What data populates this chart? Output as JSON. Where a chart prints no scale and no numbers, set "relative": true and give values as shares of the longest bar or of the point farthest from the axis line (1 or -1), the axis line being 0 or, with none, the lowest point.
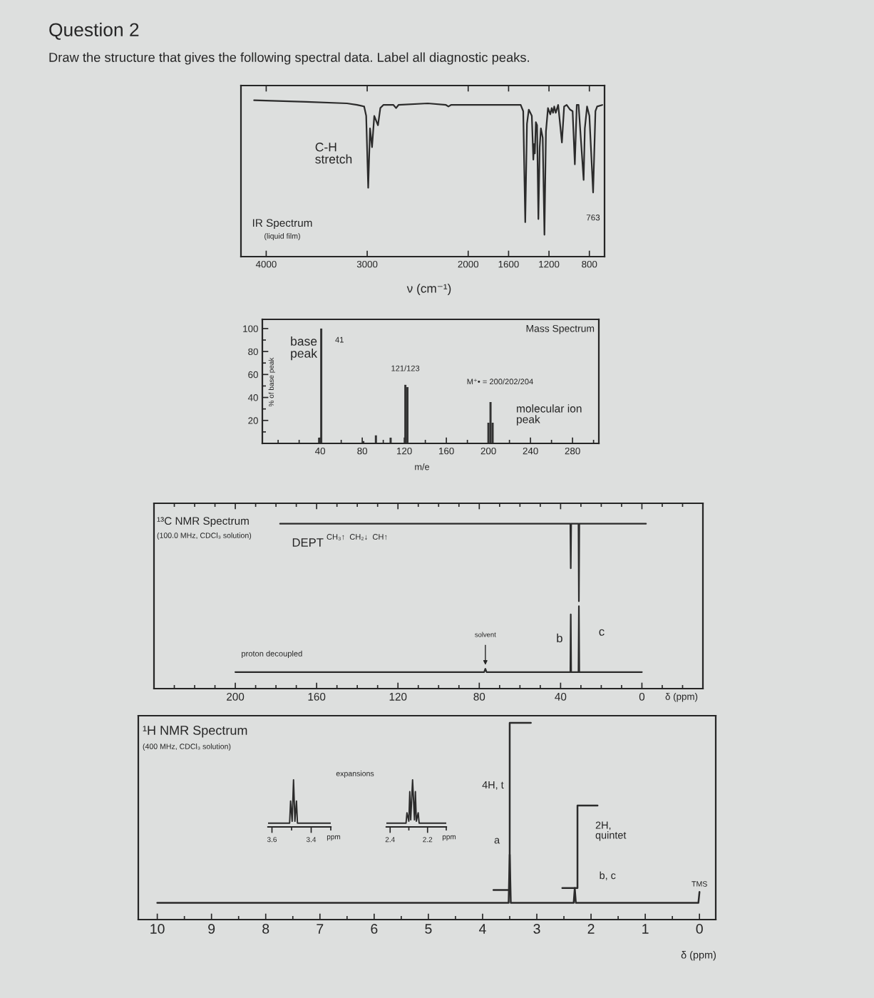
{
  "chart_data": [
    {
      "type": "other",
      "title": "Question 2",
      "subtitle": "Draw the structure that gives the following spectral data. Label all diagnostic peaks."
    },
    {
      "type": "line",
      "title": "IR Spectrum",
      "subtitle": "(liquid film)",
      "xlabel": "ν (cm⁻¹)",
      "relative": true,
      "xlim": [
        4250,
        650
      ],
      "xticks": [
        4000,
        3000,
        2000,
        1600,
        1200,
        800
      ],
      "series": [
        {
          "color": "#2b2b2b",
          "x": [
            4120,
            3600,
            3200,
            3100,
            3030,
            3010,
            2990,
            2972,
            2952,
            2930,
            2893,
            2870,
            2840,
            2740,
            2714,
            2690,
            2400,
            2220,
            2196,
            2170,
            1800,
            1480,
            1455,
            1435,
            1418,
            1400,
            1370,
            1355,
            1348,
            1340,
            1330,
            1318,
            1305,
            1292,
            1280,
            1262,
            1245,
            1230,
            1210,
            1187,
            1173,
            1160,
            1148,
            1133,
            1109,
            1072,
            1050,
            1025,
            991,
            966,
            944,
            925,
            907,
            857,
            845,
            823,
            800,
            763,
            740,
            723,
            672
          ],
          "values": [
            1.0,
            0.99,
            0.98,
            0.97,
            0.96,
            0.9,
            0.44,
            0.82,
            0.7,
            0.9,
            0.84,
            0.95,
            0.97,
            0.97,
            0.95,
            0.97,
            0.98,
            0.97,
            0.96,
            0.97,
            0.97,
            0.97,
            0.93,
            0.22,
            0.85,
            0.94,
            0.9,
            0.62,
            0.72,
            0.66,
            0.86,
            0.84,
            0.24,
            0.7,
            0.82,
            0.76,
            0.14,
            0.8,
            0.95,
            0.91,
            0.95,
            0.92,
            0.96,
            0.92,
            0.97,
            0.73,
            0.96,
            0.97,
            0.94,
            0.93,
            0.59,
            0.97,
            0.97,
            0.49,
            0.82,
            0.96,
            0.9,
            0.41,
            0.93,
            0.96,
            0.97
          ]
        }
      ],
      "annotations": [
        {
          "text": "C-H\nstretch",
          "x": 2990,
          "y": 0.44
        },
        {
          "text": "763",
          "x": 763,
          "y": 0.41
        }
      ]
    },
    {
      "type": "bar",
      "title": "Mass Spectrum",
      "xlabel": "m/e",
      "ylabel": "% of base peak",
      "x": [
        39,
        41,
        81,
        93,
        107,
        121,
        123,
        200,
        202,
        204
      ],
      "values": [
        5,
        100,
        2,
        7,
        5,
        51,
        49,
        18,
        36,
        18
      ],
      "color": "#333333",
      "xlim": [
        -15,
        305
      ],
      "xticks": [
        {
          "value": 0,
          "label": null
        },
        {
          "value": 20,
          "label": null
        },
        40,
        {
          "value": 60,
          "label": null
        },
        80,
        {
          "value": 100,
          "label": null
        },
        120,
        {
          "value": 140,
          "label": null
        },
        160,
        {
          "value": 180,
          "label": null
        },
        200,
        {
          "value": 220,
          "label": null
        },
        240,
        {
          "value": 260,
          "label": null
        },
        280,
        {
          "value": 300,
          "label": null
        }
      ],
      "ylim": [
        0,
        108
      ],
      "yticks": [
        {
          "value": 10,
          "label": null
        },
        20,
        {
          "value": 30,
          "label": null
        },
        40,
        {
          "value": 50,
          "label": null
        },
        60,
        {
          "value": 70,
          "label": null
        },
        80,
        {
          "value": 90,
          "label": null
        },
        100
      ],
      "annotations": [
        {
          "text": "base\npeak",
          "x": 41,
          "y": 100
        },
        {
          "text": "41",
          "x": 41,
          "y": 100
        },
        {
          "text": "121/123",
          "x": 121,
          "y": 51
        },
        {
          "text": "M⁺• = 200/202/204",
          "x": 202,
          "y": 36
        },
        "molecular ion\npeak"
      ]
    },
    {
      "type": "line",
      "title": "¹³C NMR Spectrum",
      "subtitle": "(100.0 MHz, CDCl₃ solution)",
      "xlabel": "δ (ppm)",
      "relative": true,
      "xlim": [
        240,
        -30
      ],
      "xticks": [
        {
          "value": 230,
          "label": null
        },
        {
          "value": 220,
          "label": null
        },
        {
          "value": 210,
          "label": null
        },
        200,
        {
          "value": 190,
          "label": null
        },
        {
          "value": 180,
          "label": null
        },
        {
          "value": 170,
          "label": null
        },
        160,
        {
          "value": 150,
          "label": null
        },
        {
          "value": 140,
          "label": null
        },
        {
          "value": 130,
          "label": null
        },
        120,
        {
          "value": 110,
          "label": null
        },
        {
          "value": 100,
          "label": null
        },
        {
          "value": 90,
          "label": null
        },
        80,
        {
          "value": 70,
          "label": null
        },
        {
          "value": 60,
          "label": null
        },
        {
          "value": 50,
          "label": null
        },
        40,
        {
          "value": 30,
          "label": null
        },
        {
          "value": 20,
          "label": null
        },
        {
          "value": 10,
          "label": null
        },
        0,
        {
          "value": -10,
          "label": null
        },
        {
          "value": -20,
          "label": null
        }
      ],
      "series": [
        {
          "name": "DEPT",
          "color": "#2b2b2b",
          "x": [
            178,
            35.2,
            35,
            34.8,
            31.2,
            31,
            30.8,
            -2
          ],
          "values": [
            1,
            1,
            0.73,
            1,
            1,
            0.53,
            1,
            1
          ]
        },
        {
          "name": "proton decoupled",
          "color": "#2b2b2b",
          "x": [
            200,
            77.6,
            77,
            76.4,
            35.2,
            35,
            34.8,
            31.2,
            31,
            30.8,
            0
          ],
          "values": [
            0.1,
            0.1,
            0.12,
            0.1,
            0.1,
            0.45,
            0.1,
            0.1,
            0.5,
            0.1,
            0.1
          ]
        }
      ],
      "annotations": [
        "CH₃↑  CH₂↓  CH↑",
        {
          "text": "solvent",
          "x": 77,
          "y": 0.12
        },
        {
          "text": "b",
          "x": 35,
          "y": 0.3
        },
        {
          "text": "c",
          "x": 31,
          "y": 0.34
        }
      ]
    },
    {
      "type": "line",
      "title": "¹H NMR Spectrum",
      "subtitle": "(400 MHz, CDCl₃ solution)",
      "xlabel": "δ (ppm)",
      "relative": true,
      "xlim": [
        10.35,
        -0.3
      ],
      "xticks": [
        10,
        {
          "value": 9.5,
          "label": null
        },
        9,
        {
          "value": 8.5,
          "label": null
        },
        8,
        {
          "value": 7.5,
          "label": null
        },
        7,
        {
          "value": 6.5,
          "label": null
        },
        6,
        {
          "value": 5.5,
          "label": null
        },
        5,
        {
          "value": 4.5,
          "label": null
        },
        4,
        {
          "value": 3.5,
          "label": null
        },
        3,
        {
          "value": 2.5,
          "label": null
        },
        2,
        {
          "value": 1.5,
          "label": null
        },
        1,
        {
          "value": 0.5,
          "label": null
        },
        0
      ],
      "series": [
        {
          "color": "#2b2b2b",
          "x": [
            10,
            3.52,
            3.5,
            3.48,
            2.32,
            2.3,
            2.28,
            0.02,
            0
          ],
          "values": [
            0.085,
            0.085,
            0.33,
            0.085,
            0.085,
            0.16,
            0.085,
            0.085,
            0.14
          ]
        },
        {
          "color": "#2b2b2b",
          "x": [
            3.8,
            3.5,
            3.5,
            3.11
          ],
          "values": [
            0.15,
            0.15,
            1,
            1
          ]
        },
        {
          "color": "#2b2b2b",
          "x": [
            2.53,
            2.25,
            2.25,
            1.88
          ],
          "values": [
            0.16,
            0.16,
            0.58,
            0.58
          ]
        }
      ],
      "annotations": [
        {
          "text": "4H, t",
          "x": 3.5,
          "y": 0.68
        },
        {
          "text": "a",
          "x": 3.5,
          "y": 0.4
        },
        {
          "text": "2H,\nquintet",
          "x": 2.25,
          "y": 0.45
        },
        {
          "text": "b, c",
          "x": 2.25,
          "y": 0.22
        },
        {
          "text": "TMS",
          "x": 0,
          "y": 0.14
        },
        "expansions"
      ]
    },
    {
      "type": "line",
      "xlabel": "ppm",
      "relative": true,
      "xlim": [
        3.62,
        3.3
      ],
      "xticks": [
        3.6,
        {
          "value": 3.5,
          "label": null
        },
        3.4,
        {
          "value": 3.3,
          "label": null
        }
      ],
      "series": [
        {
          "color": "#2b2b2b",
          "x": [
            3.62,
            3.51,
            3.505,
            3.497,
            3.49,
            3.483,
            3.475,
            3.47,
            3.3
          ],
          "values": [
            0.08,
            0.08,
            0.55,
            0.12,
            1,
            0.12,
            0.55,
            0.08,
            0.08
          ]
        }
      ]
    },
    {
      "type": "line",
      "xlabel": "ppm",
      "relative": true,
      "xlim": [
        2.42,
        2.1
      ],
      "xticks": [
        2.4,
        {
          "value": 2.3,
          "label": null
        },
        2.2,
        {
          "value": 2.1,
          "label": null
        }
      ],
      "series": [
        {
          "color": "#2b2b2b",
          "x": [
            2.42,
            2.315,
            2.31,
            2.3,
            2.295,
            2.29,
            2.28,
            2.27,
            2.265,
            2.26,
            2.25,
            2.245,
            2.1
          ],
          "values": [
            0.08,
            0.08,
            0.3,
            0.12,
            0.75,
            0.15,
            1,
            0.15,
            0.75,
            0.12,
            0.3,
            0.08,
            0.08
          ]
        }
      ]
    }
  ]
}
